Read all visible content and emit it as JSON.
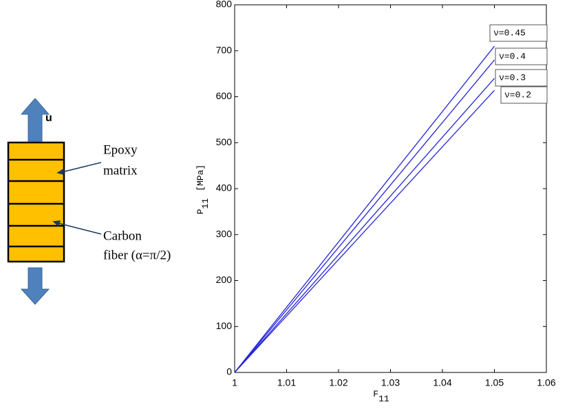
{
  "chart_data": {
    "type": "line",
    "xlabel": {
      "symbol": "F",
      "subscript": "11"
    },
    "ylabel": {
      "symbol": "P",
      "subscript": "11",
      "unit": "[MPa]"
    },
    "xlim": [
      1,
      1.06
    ],
    "xticks": [
      1,
      1.01,
      1.02,
      1.03,
      1.04,
      1.05,
      1.06
    ],
    "ylim": [
      0,
      800
    ],
    "yticks": [
      0,
      100,
      200,
      300,
      400,
      500,
      600,
      700,
      800
    ],
    "series": [
      {
        "name": "ν=0.45",
        "color": "#2424d8",
        "x": [
          1,
          1.05
        ],
        "values": [
          0,
          710
        ]
      },
      {
        "name": "ν=0.4",
        "color": "#2424d8",
        "x": [
          1,
          1.05
        ],
        "values": [
          0,
          680
        ]
      },
      {
        "name": "ν=0.3",
        "color": "#2424d8",
        "x": [
          1,
          1.05
        ],
        "values": [
          0,
          640
        ]
      },
      {
        "name": "ν=0.2",
        "color": "#2424d8",
        "x": [
          1,
          1.05
        ],
        "values": [
          0,
          614
        ]
      }
    ]
  },
  "diagram": {
    "load": "u",
    "matrix_label": [
      "Epoxy",
      "matrix"
    ],
    "fiber_label": [
      "Carbon",
      "fiber (α=π/2)"
    ]
  }
}
